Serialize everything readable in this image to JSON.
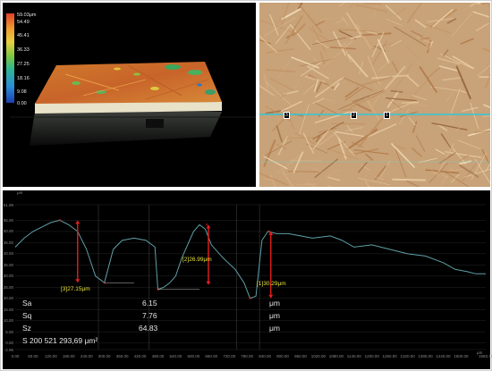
{
  "colorbar": {
    "labels": [
      "59.03μm",
      "54.49",
      "45.41",
      "36.33",
      "27.25",
      "18.16",
      "9.08",
      "0.00"
    ]
  },
  "optical": {
    "markers": [
      "3",
      "2",
      "1"
    ]
  },
  "profile": {
    "y_labels": [
      "61.99",
      "55.00",
      "50.00",
      "45.00",
      "40.00",
      "35.00",
      "30.00",
      "25.00",
      "20.00",
      "15.00",
      "10.00",
      "5.00",
      "0.00",
      "-2.95"
    ],
    "y_unit": "μm",
    "x_labels": [
      "0.00",
      "60.00",
      "120.00",
      "180.00",
      "240.00",
      "300.00",
      "360.00",
      "420.00",
      "480.00",
      "540.00",
      "600.00",
      "660.00",
      "720.00",
      "780.00",
      "840.00",
      "900.00",
      "960.00",
      "1020.00",
      "1080.00",
      "1140.00",
      "1200.00",
      "1260.00",
      "1320.00",
      "1380.00",
      "1440.00",
      "1500.00",
      "1583.11"
    ],
    "x_unit": "μm",
    "annotations": [
      "[3]27.15μm",
      "[2]26.99μm",
      "[1]30.29μm"
    ],
    "stats": [
      {
        "name": "Sa",
        "value": "6.15",
        "unit": "μm"
      },
      {
        "name": "Sq",
        "value": "7.76",
        "unit": "μm"
      },
      {
        "name": "Sz",
        "value": "64.83",
        "unit": "μm"
      }
    ],
    "area": "S 200 521 293,69 μm²"
  },
  "colors": {
    "background": "#000000",
    "profile_line": "#5fa0a8",
    "measure": "#e51e1e",
    "annotation": "#e8e23a",
    "scan_line": "#2fc8d8"
  },
  "chart_data": {
    "type": "line",
    "xlabel": "",
    "ylabel": "",
    "x_unit": "μm",
    "y_unit": "μm",
    "xlim": [
      0,
      1583.11
    ],
    "ylim": [
      -2.95,
      61.99
    ],
    "x": [
      0,
      30,
      60,
      90,
      120,
      150,
      180,
      210,
      240,
      270,
      300,
      330,
      360,
      400,
      440,
      470,
      480,
      500,
      520,
      540,
      560,
      600,
      620,
      640,
      660,
      700,
      740,
      770,
      790,
      810,
      830,
      850,
      880,
      920,
      960,
      1000,
      1060,
      1100,
      1140,
      1200,
      1260,
      1320,
      1380,
      1440,
      1480,
      1520,
      1550,
      1583.11
    ],
    "y": [
      43,
      47,
      50,
      52,
      54,
      55,
      53,
      50,
      42,
      30,
      27,
      42,
      46,
      47,
      46,
      43,
      24,
      25,
      27,
      30,
      38,
      50,
      53,
      51,
      44,
      38,
      33,
      27,
      20,
      21,
      46,
      50,
      49,
      49,
      48,
      47,
      48,
      46,
      43,
      44,
      42,
      40,
      39,
      36,
      33,
      32,
      31,
      31
    ]
  }
}
